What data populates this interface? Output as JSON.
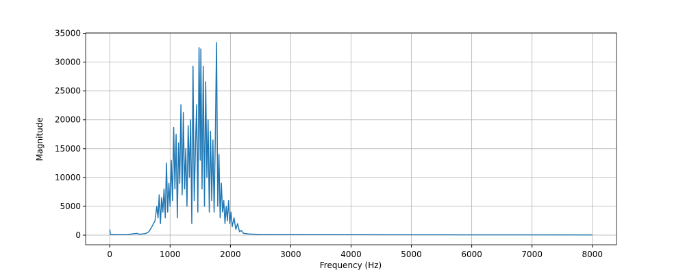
{
  "chart_data": {
    "type": "line",
    "x_label": "Frequency (Hz)",
    "y_label": "Magnitude",
    "x": [
      0,
      10,
      100,
      300,
      450,
      500,
      600,
      650,
      700,
      750,
      780,
      800,
      820,
      840,
      860,
      880,
      900,
      920,
      940,
      960,
      980,
      1000,
      1020,
      1040,
      1060,
      1080,
      1100,
      1120,
      1140,
      1160,
      1180,
      1200,
      1220,
      1240,
      1260,
      1280,
      1300,
      1320,
      1340,
      1360,
      1380,
      1400,
      1420,
      1440,
      1460,
      1480,
      1500,
      1510,
      1530,
      1550,
      1570,
      1590,
      1610,
      1630,
      1650,
      1670,
      1690,
      1710,
      1730,
      1750,
      1770,
      1790,
      1810,
      1830,
      1850,
      1870,
      1890,
      1910,
      1930,
      1950,
      1970,
      1990,
      2010,
      2030,
      2060,
      2090,
      2120,
      2150,
      2180,
      2220,
      2300,
      2500,
      3000,
      4000,
      5000,
      6000,
      7000,
      8000
    ],
    "series": [
      {
        "color": "#1f77b4",
        "values": [
          1000,
          150,
          100,
          120,
          300,
          150,
          300,
          600,
          1500,
          2500,
          5000,
          3000,
          7000,
          2000,
          6500,
          4000,
          8000,
          3000,
          12500,
          4000,
          9000,
          5000,
          13000,
          6000,
          18700,
          8000,
          17500,
          3000,
          16000,
          9000,
          22600,
          7000,
          21300,
          8000,
          15000,
          5000,
          19000,
          10000,
          20000,
          2000,
          29300,
          6000,
          15000,
          22600,
          4000,
          32500,
          13000,
          32300,
          8000,
          29300,
          5000,
          26600,
          10000,
          20000,
          4000,
          18000,
          6000,
          16500,
          4000,
          17000,
          33400,
          5000,
          14000,
          3000,
          9000,
          4000,
          6000,
          2000,
          5000,
          2500,
          6000,
          2000,
          4000,
          1500,
          3000,
          1000,
          2000,
          600,
          800,
          300,
          200,
          120,
          100,
          80,
          70,
          60,
          50,
          40
        ]
      }
    ],
    "xlim": [
      -400,
      8400
    ],
    "ylim": [
      -1670,
      35070
    ],
    "xticks": [
      0,
      1000,
      2000,
      3000,
      4000,
      5000,
      6000,
      7000,
      8000
    ],
    "yticks": [
      0,
      5000,
      10000,
      15000,
      20000,
      25000,
      30000,
      35000
    ],
    "grid": true
  }
}
